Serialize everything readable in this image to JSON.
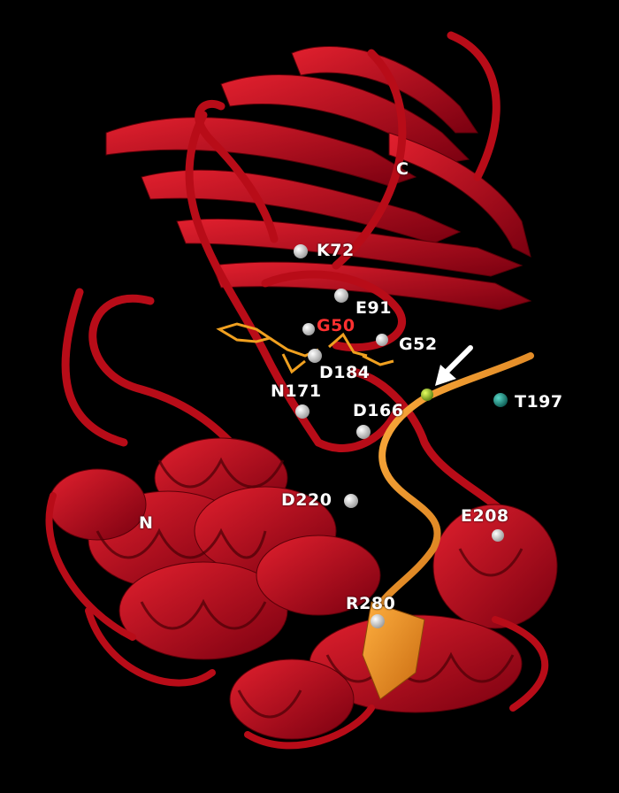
{
  "colors": {
    "background": "#000000",
    "ribbon": "#c0101e",
    "ribbon_dark": "#6a0008",
    "peptide": "#f09020",
    "ligand": "#f0a020",
    "residue_sphere": "#f2f2f2",
    "teal_atom": "#1a8a80",
    "green_atom": "#a0d020",
    "arrow": "#ffffff"
  },
  "labels": {
    "c_terminus": "C",
    "n_terminus": "N",
    "k72": "K72",
    "e91": "E91",
    "g50": "G50",
    "g52": "G52",
    "d184": "D184",
    "n171": "N171",
    "d166": "D166",
    "t197": "T197",
    "d220": "D220",
    "e208": "E208",
    "r280": "R280"
  },
  "icons": {
    "pointer": "arrow-icon"
  }
}
